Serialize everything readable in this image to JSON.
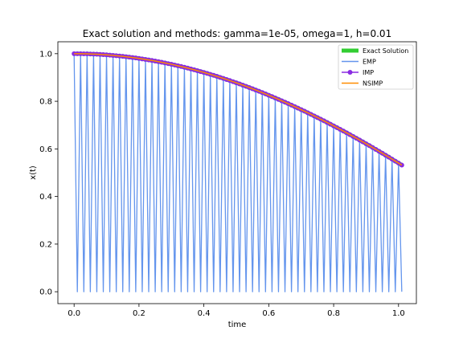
{
  "chart_data": {
    "type": "line",
    "title": "Exact solution and methods: gamma=1e-05, omega=1, h=0.01",
    "xlabel": "time",
    "ylabel": "x(t)",
    "xlim": [
      -0.05,
      1.055
    ],
    "ylim": [
      -0.05,
      1.05
    ],
    "xticks": [
      0.0,
      0.2,
      0.4,
      0.6,
      0.8,
      1.0
    ],
    "yticks": [
      0.0,
      0.2,
      0.4,
      0.6,
      0.8,
      1.0
    ],
    "xtick_labels": [
      "0.0",
      "0.2",
      "0.4",
      "0.6",
      "0.8",
      "1.0"
    ],
    "ytick_labels": [
      "0.0",
      "0.2",
      "0.4",
      "0.6",
      "0.8",
      "1.0"
    ],
    "grid": false,
    "legend_position": "top-right",
    "x_range": {
      "start": 0.0,
      "end": 1.01,
      "step": 0.01
    },
    "series": [
      {
        "name": "Exact Solution",
        "color": "#32cd32",
        "formula": "cos(t)",
        "style": "thick-line"
      },
      {
        "name": "EMP",
        "color": "#6495ed",
        "formula": "cos(t) at even steps, 0 at odd steps",
        "style": "thin-line"
      },
      {
        "name": "IMP",
        "color": "#8a2be2",
        "formula": "cos(t)",
        "style": "line-with-circle-markers"
      },
      {
        "name": "NSIMP",
        "color": "#ff8c00",
        "formula": "cos(t)",
        "style": "thin-line"
      }
    ]
  }
}
